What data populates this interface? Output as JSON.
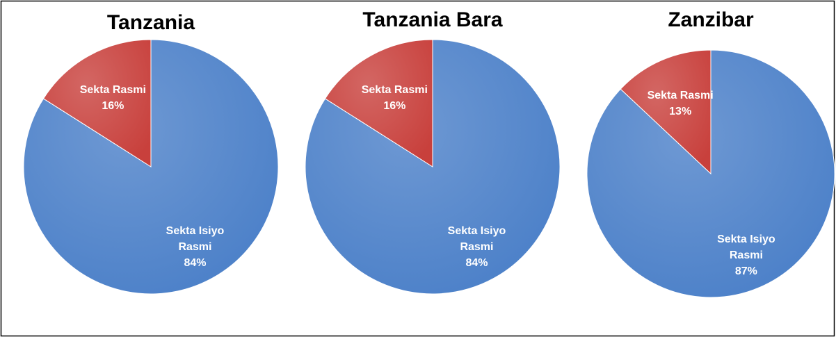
{
  "chart_data": [
    {
      "type": "pie",
      "title": "Tanzania",
      "categories": [
        "Sekta Isiyo Rasmi",
        "Sekta Rasmi"
      ],
      "values": [
        84,
        16
      ],
      "value_labels": [
        "84%",
        "16%"
      ],
      "colors": [
        "#4a7fc8",
        "#c8403c"
      ]
    },
    {
      "type": "pie",
      "title": "Tanzania Bara",
      "categories": [
        "Sekta Isiyo Rasmi",
        "Sekta Rasmi"
      ],
      "values": [
        84,
        16
      ],
      "value_labels": [
        "84%",
        "16%"
      ],
      "colors": [
        "#4a7fc8",
        "#c8403c"
      ]
    },
    {
      "type": "pie",
      "title": "Zanzibar",
      "categories": [
        "Sekta Isiyo Rasmi",
        "Sekta Rasmi"
      ],
      "values": [
        87,
        13
      ],
      "value_labels": [
        "87%",
        "13%"
      ],
      "colors": [
        "#4a7fc8",
        "#c8403c"
      ]
    }
  ]
}
